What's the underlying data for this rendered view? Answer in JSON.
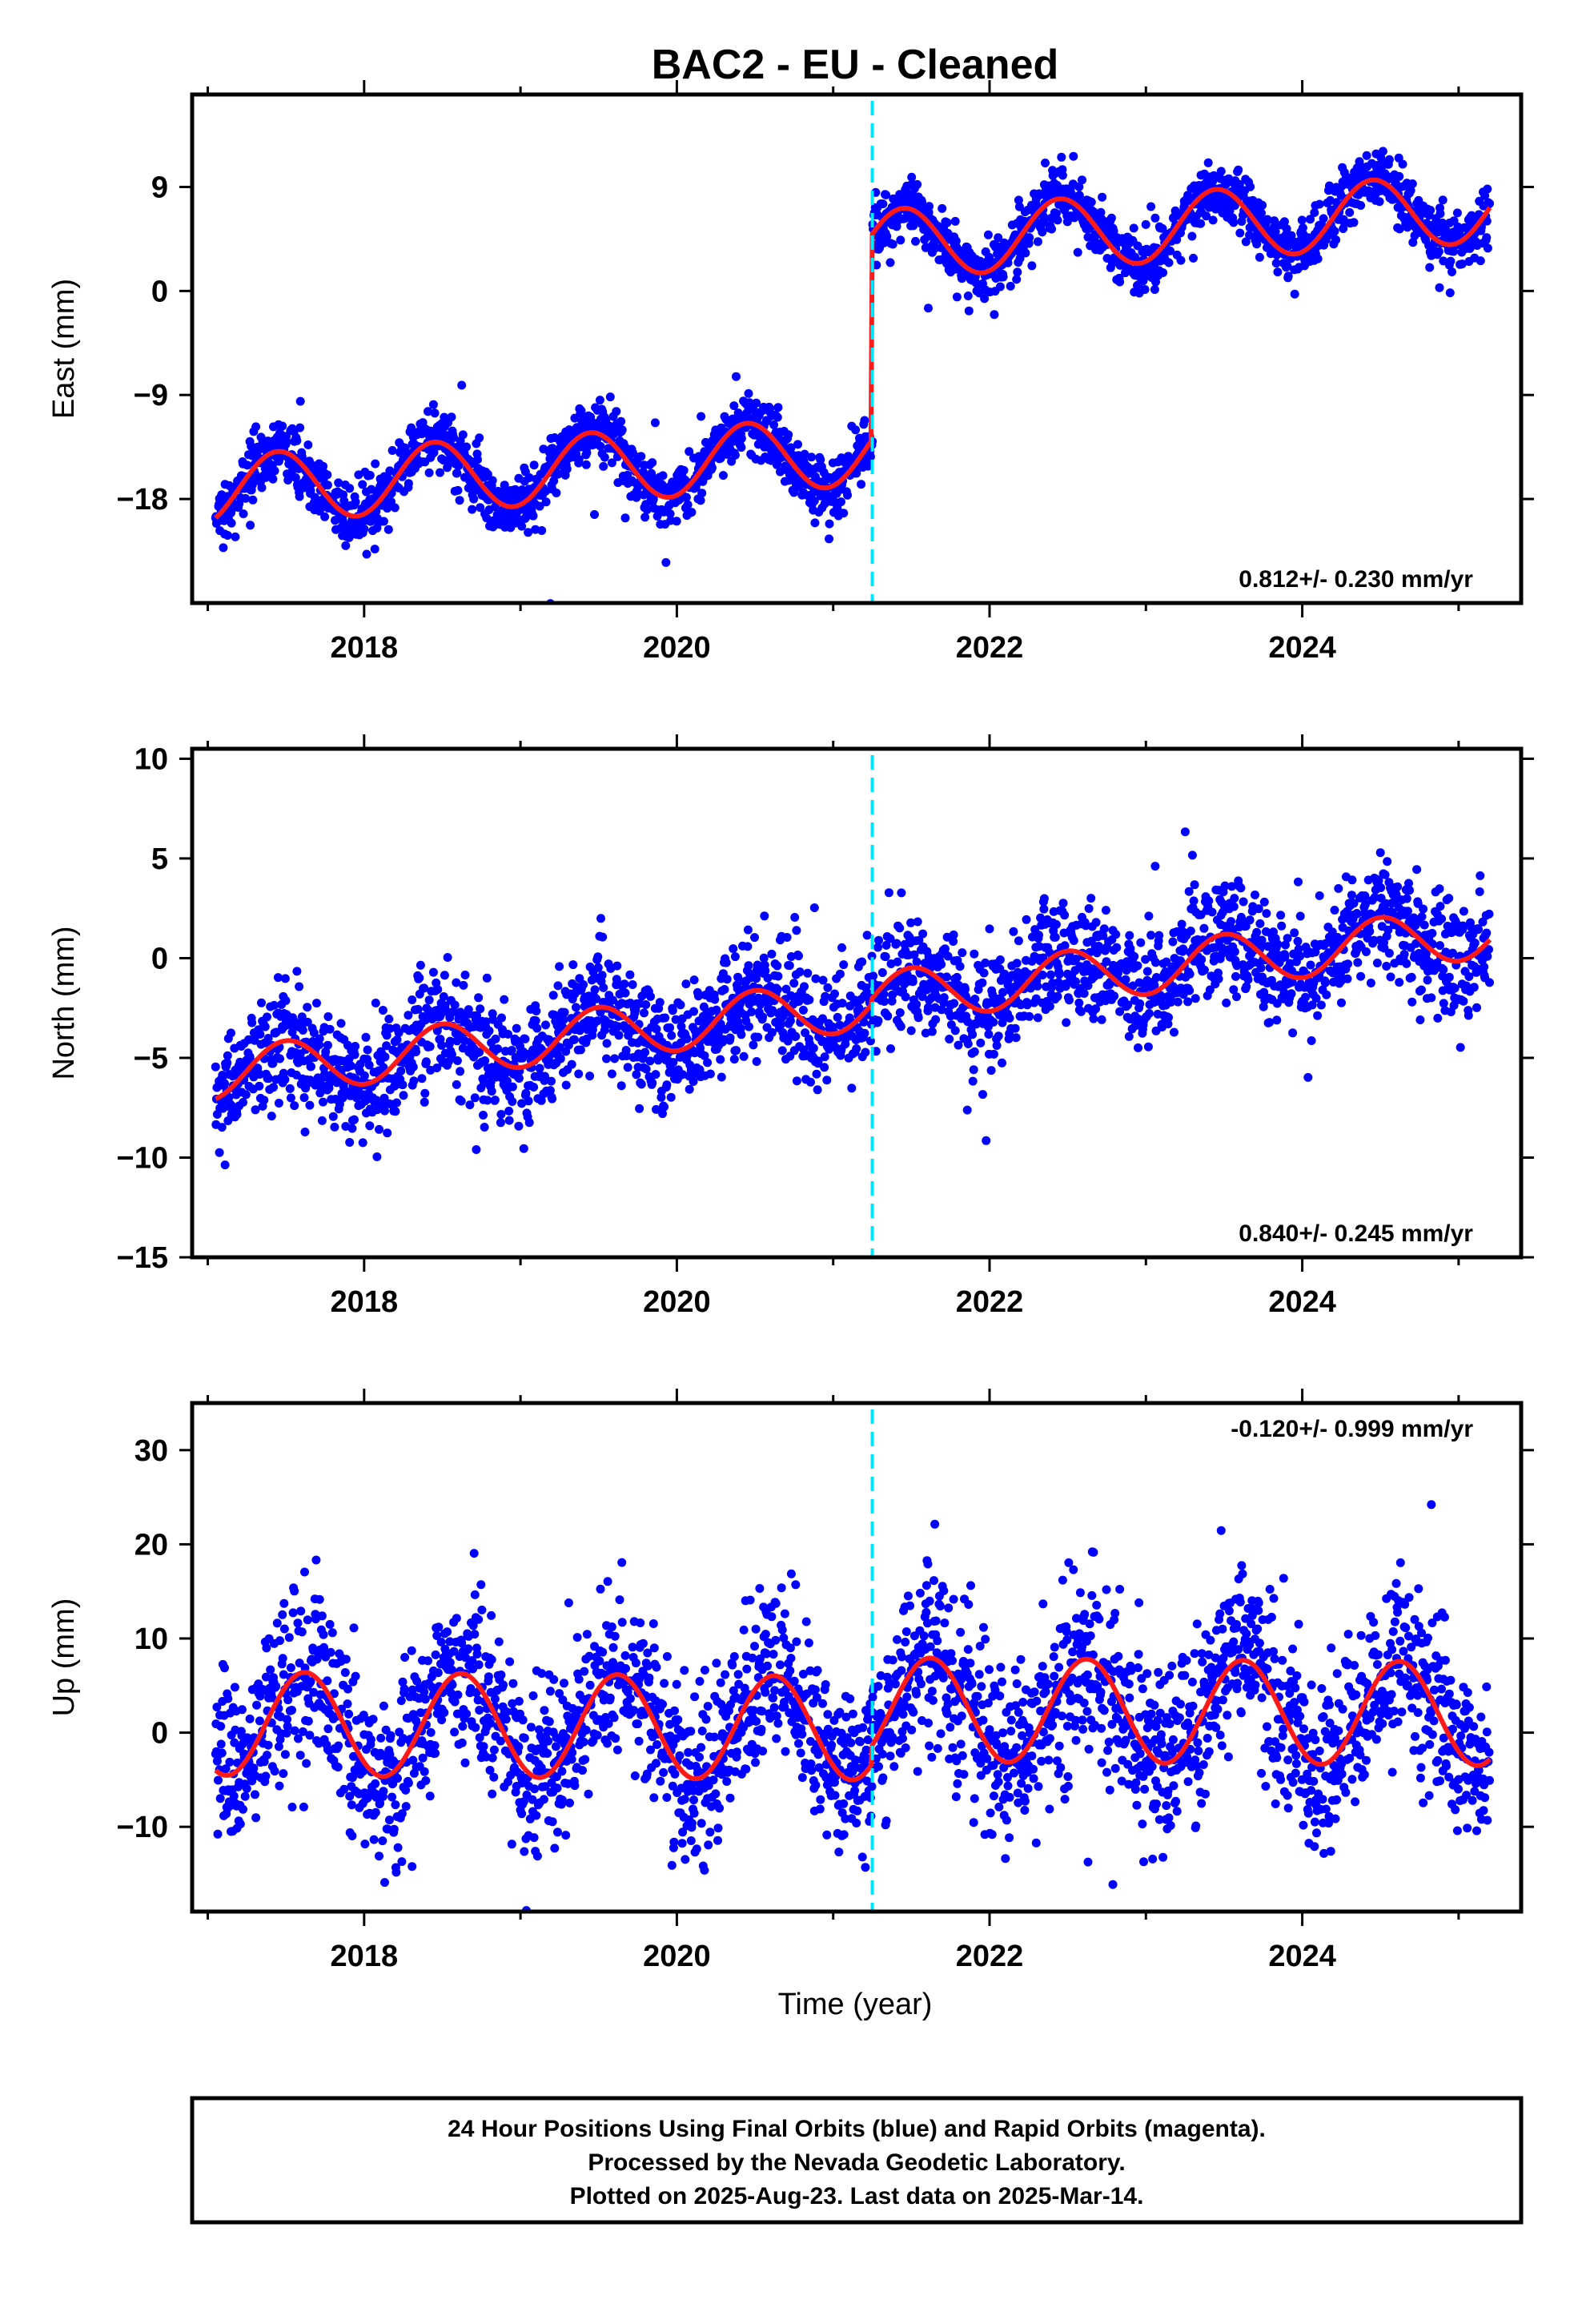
{
  "title": "BAC2  - EU - Cleaned",
  "xlabel": "Time (year)",
  "colors": {
    "points": "#0000ff",
    "model": "#ff1a1a",
    "event_line": "#00e5ff",
    "frame": "#000000"
  },
  "footer": {
    "line1": "24 Hour Positions Using Final Orbits (blue) and Rapid Orbits (magenta).",
    "line2": "Processed by the Nevada Geodetic Laboratory.",
    "line3": "Plotted on 2025-Aug-23. Last data on 2025-Mar-14."
  },
  "chart_data": [
    {
      "type": "scatter",
      "component": "east",
      "ylabel": "East (mm)",
      "xlim": [
        2016.9,
        2025.4
      ],
      "ylim": [
        -27,
        17
      ],
      "xticks": [
        "2018",
        "2020",
        "2022",
        "2024"
      ],
      "yticks": [
        "-18",
        "-9",
        "0",
        "9"
      ],
      "rate": "0.812+/- 0.230 mm/yr",
      "rate_position": "bottom-right",
      "event_year": 2021.25,
      "model": {
        "pre_offset": -14.0,
        "post_offset": 3.8,
        "trend_mm_per_yr": 0.812,
        "annual_amplitude": 3.0,
        "annual_peak_year_fraction": 0.45,
        "noise": 1.3
      },
      "series": [
        {
          "name": "Final Orbits (blue)",
          "x_range": [
            2017.05,
            2025.2
          ]
        }
      ]
    },
    {
      "type": "scatter",
      "component": "north",
      "ylabel": "North (mm)",
      "xlim": [
        2016.9,
        2025.4
      ],
      "ylim": [
        -15,
        10.5
      ],
      "xticks": [
        "2018",
        "2020",
        "2022",
        "2024"
      ],
      "yticks": [
        "-15",
        "-10",
        "-5",
        "0",
        "5",
        "10"
      ],
      "rate": "0.840+/- 0.245 mm/yr",
      "rate_position": "bottom-right",
      "event_year": 2021.25,
      "model": {
        "pre_offset": -2.5,
        "post_offset": -2.2,
        "trend_mm_per_yr": 0.84,
        "annual_amplitude": 1.3,
        "annual_peak_year_fraction": 0.5,
        "noise": 1.4
      },
      "series": [
        {
          "name": "Final Orbits (blue)",
          "x_range": [
            2017.05,
            2025.2
          ]
        }
      ]
    },
    {
      "type": "scatter",
      "component": "up",
      "ylabel": "Up (mm)",
      "xlim": [
        2016.9,
        2025.4
      ],
      "ylim": [
        -19,
        35
      ],
      "xticks": [
        "2018",
        "2020",
        "2022",
        "2024"
      ],
      "yticks": [
        "-10",
        "0",
        "10",
        "20",
        "30"
      ],
      "rate": "-0.120+/- 0.999 mm/yr",
      "rate_position": "top-right",
      "event_year": 2021.25,
      "model": {
        "pre_offset": 0.5,
        "post_offset": 2.5,
        "trend_mm_per_yr": -0.12,
        "annual_amplitude": 5.5,
        "annual_peak_year_fraction": 0.62,
        "noise": 4.5
      },
      "series": [
        {
          "name": "Final Orbits (blue)",
          "x_range": [
            2017.05,
            2025.2
          ]
        }
      ]
    }
  ]
}
